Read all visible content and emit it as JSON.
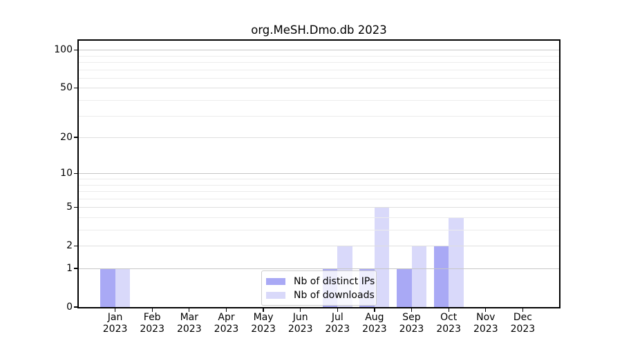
{
  "title": "org.MeSH.Dmo.db 2023",
  "chart_data": {
    "type": "bar",
    "title": "org.MeSH.Dmo.db 2023",
    "categories": [
      "Jan",
      "Feb",
      "Mar",
      "Apr",
      "May",
      "Jun",
      "Jul",
      "Aug",
      "Sep",
      "Oct",
      "Nov",
      "Dec"
    ],
    "category_year": "2023",
    "series": [
      {
        "name": "Nb of distinct IPs",
        "color": "#a9a9f5",
        "values": [
          1,
          0,
          0,
          0,
          0,
          0,
          1,
          1,
          1,
          2,
          0,
          0
        ]
      },
      {
        "name": "Nb of downloads",
        "color": "#d9d9fa",
        "values": [
          1,
          0,
          0,
          0,
          0,
          0,
          2,
          5,
          2,
          4,
          0,
          0
        ]
      }
    ],
    "xlabel": "",
    "ylabel": "",
    "yscale": "log1p",
    "yticks": [
      0,
      1,
      2,
      5,
      10,
      20,
      50,
      100
    ],
    "yticks_major_grid": [
      1,
      10,
      100
    ],
    "yticks_mid_grid": [
      2,
      5,
      20,
      50
    ],
    "yticks_minor_grid": [
      3,
      4,
      6,
      7,
      8,
      9,
      30,
      40,
      60,
      70,
      80,
      90
    ],
    "ylim": [
      0,
      121
    ],
    "grid": "horizontal",
    "legend_position": "lower-center",
    "bar_group": "side-by-side"
  },
  "style": {
    "grid_major_color": "#c6c6c6",
    "grid_mid_color": "#dedede",
    "grid_minor_color": "#ececec",
    "spine_color": "#000000",
    "legend_border_color": "#cccccc",
    "legend_background": "rgba(255,255,255,0.8)",
    "background": "#ffffff",
    "text_color": "#000000"
  }
}
